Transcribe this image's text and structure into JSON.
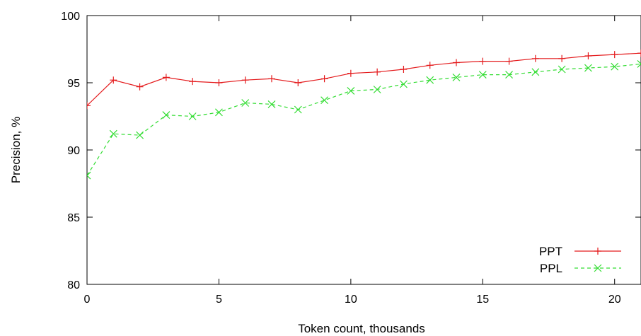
{
  "chart_data": {
    "type": "line",
    "title": "",
    "xlabel": "Token count, thousands",
    "ylabel": "Precision, %",
    "xlim": [
      0,
      21
    ],
    "ylim": [
      80,
      100
    ],
    "xticks": [
      0,
      5,
      10,
      15,
      20
    ],
    "yticks": [
      80,
      85,
      90,
      95,
      100
    ],
    "grid": false,
    "legend_position": "bottom-right",
    "series": [
      {
        "name": "PPT",
        "color": "#e41a1c",
        "line_style": "solid",
        "marker": "plus",
        "x": [
          0,
          1,
          2,
          3,
          4,
          5,
          6,
          7,
          8,
          9,
          10,
          11,
          12,
          13,
          14,
          15,
          16,
          17,
          18,
          19,
          20,
          21
        ],
        "y": [
          93.3,
          95.2,
          94.7,
          95.4,
          95.1,
          95.0,
          95.2,
          95.3,
          95.0,
          95.3,
          95.7,
          95.8,
          96.0,
          96.3,
          96.5,
          96.6,
          96.6,
          96.8,
          96.8,
          97.0,
          97.1,
          97.2
        ]
      },
      {
        "name": "PPL",
        "color": "#33dd33",
        "line_style": "dashed",
        "marker": "x",
        "x": [
          0,
          1,
          2,
          3,
          4,
          5,
          6,
          7,
          8,
          9,
          10,
          11,
          12,
          13,
          14,
          15,
          16,
          17,
          18,
          19,
          20,
          21
        ],
        "y": [
          88.1,
          91.2,
          91.1,
          92.6,
          92.5,
          92.8,
          93.5,
          93.4,
          93.0,
          93.7,
          94.4,
          94.5,
          94.9,
          95.2,
          95.4,
          95.6,
          95.6,
          95.8,
          96.0,
          96.1,
          96.2,
          96.4
        ]
      }
    ]
  }
}
